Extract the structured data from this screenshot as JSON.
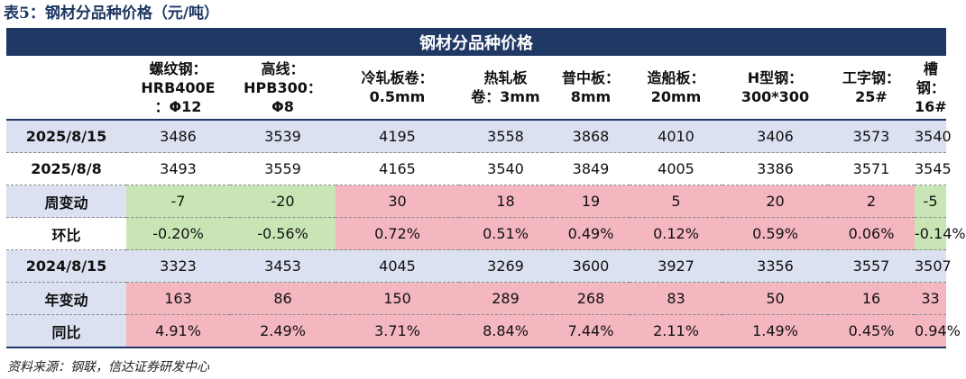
{
  "caption": "表5：钢材分品种价格（元/吨）",
  "table": {
    "title": "钢材分品种价格",
    "headers": [
      "",
      "螺纹钢：\nHRB400E\n：Φ12",
      "高线：\nHPB300：\nΦ8",
      "冷轧板卷：\n0.5mm",
      "热轧板\n卷：3mm",
      "普中板：\n8mm",
      "造船板：\n20mm",
      "H型钢：\n300*300",
      "工字钢：\n25#",
      "槽钢：\n16#"
    ],
    "rows": [
      {
        "label": "2025/8/15",
        "style": "blue",
        "cells": [
          "3486",
          "3539",
          "4195",
          "3558",
          "3868",
          "4010",
          "3406",
          "3573",
          "3540"
        ],
        "colors": [
          "",
          "",
          "",
          "",
          "",
          "",
          "",
          "",
          ""
        ]
      },
      {
        "label": "2025/8/8",
        "style": "white",
        "cells": [
          "3493",
          "3559",
          "4165",
          "3540",
          "3849",
          "4005",
          "3386",
          "3571",
          "3545"
        ],
        "colors": [
          "",
          "",
          "",
          "",
          "",
          "",
          "",
          "",
          ""
        ]
      },
      {
        "label": "周变动",
        "style": "blue",
        "cells": [
          "-7",
          "-20",
          "30",
          "18",
          "19",
          "5",
          "20",
          "2",
          "-5"
        ],
        "colors": [
          "green",
          "green",
          "pink",
          "pink",
          "pink",
          "pink",
          "pink",
          "pink",
          "green"
        ]
      },
      {
        "label": "环比",
        "style": "white",
        "cells": [
          "-0.20%",
          "-0.56%",
          "0.72%",
          "0.51%",
          "0.49%",
          "0.12%",
          "0.59%",
          "0.06%",
          "-0.14%"
        ],
        "colors": [
          "green",
          "green",
          "pink",
          "pink",
          "pink",
          "pink",
          "pink",
          "pink",
          "green"
        ]
      },
      {
        "label": "2024/8/15",
        "style": "blue",
        "cells": [
          "3323",
          "3453",
          "4045",
          "3269",
          "3600",
          "3927",
          "3356",
          "3557",
          "3507"
        ],
        "colors": [
          "",
          "",
          "",
          "",
          "",
          "",
          "",
          "",
          ""
        ]
      },
      {
        "label": "年变动",
        "style": "blue",
        "cells": [
          "163",
          "86",
          "150",
          "289",
          "268",
          "83",
          "50",
          "16",
          "33"
        ],
        "colors": [
          "pink",
          "pink",
          "pink",
          "pink",
          "pink",
          "pink",
          "pink",
          "pink",
          "pink"
        ]
      },
      {
        "label": "同比",
        "style": "blue",
        "cells": [
          "4.91%",
          "2.49%",
          "3.71%",
          "8.84%",
          "7.44%",
          "2.11%",
          "1.49%",
          "0.45%",
          "0.94%"
        ],
        "colors": [
          "pink",
          "pink",
          "pink",
          "pink",
          "pink",
          "pink",
          "pink",
          "pink",
          "pink"
        ]
      }
    ]
  },
  "source": "资料来源：钢联，信达证券研发中心"
}
